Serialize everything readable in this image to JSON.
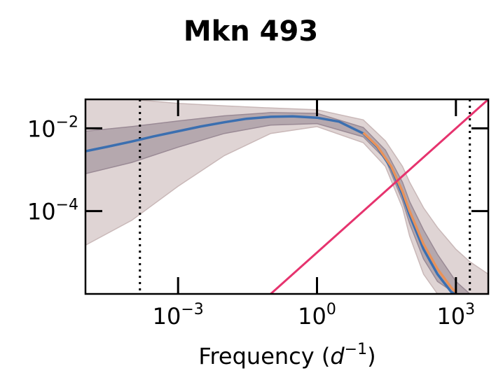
{
  "chart_data": {
    "type": "line",
    "title": "Mkn 493",
    "xlabel": "Frequency (d^-1)",
    "xscale": "log",
    "yscale": "log",
    "xlim": [
      1e-05,
      5000
    ],
    "ylim": [
      1e-06,
      0.05
    ],
    "x_ticks": [
      {
        "base": "10",
        "exp": "−3",
        "value": 0.001
      },
      {
        "base": "10",
        "exp": "0",
        "value": 1
      },
      {
        "base": "10",
        "exp": "3",
        "value": 1000
      }
    ],
    "y_ticks": [
      {
        "base": "10",
        "exp": "−2",
        "value": 0.01
      },
      {
        "base": "10",
        "exp": "−4",
        "value": 0.0001
      }
    ],
    "vlines": [
      {
        "x": 0.00015,
        "style": "dotted",
        "color": "#000000"
      },
      {
        "x": 2000,
        "style": "dotted",
        "color": "#000000"
      }
    ],
    "series": [
      {
        "role": "median",
        "color": "#3b6fb0",
        "x": [
          1e-05,
          3e-05,
          0.0001,
          0.0003,
          0.001,
          0.003,
          0.01,
          0.03,
          0.1,
          0.3,
          1,
          3,
          10,
          20,
          40,
          70,
          100,
          200,
          400,
          800,
          1000
        ],
        "y": [
          0.0028,
          0.0036,
          0.0048,
          0.0064,
          0.0085,
          0.011,
          0.014,
          0.017,
          0.019,
          0.0195,
          0.018,
          0.0145,
          0.0075,
          0.0035,
          0.0011,
          0.00025,
          8e-05,
          1.2e-05,
          3e-06,
          1.1e-06,
          1e-06
        ]
      },
      {
        "role": "median-alt",
        "color": "#e8925a",
        "x": [
          10,
          20,
          40,
          70,
          100,
          200,
          400,
          800,
          1000
        ],
        "y": [
          0.0078,
          0.0037,
          0.0012,
          0.0003,
          0.0001,
          1.6e-05,
          4e-06,
          1.4e-06,
          1.1e-06
        ]
      },
      {
        "role": "reference-power-law",
        "color": "#e6336e",
        "x": [
          0.1,
          5000
        ],
        "y": [
          1e-06,
          0.05
        ]
      }
    ],
    "bands": [
      {
        "role": "outer-interval",
        "color": "#c9b8b8",
        "x": [
          1e-05,
          0.0001,
          0.001,
          0.01,
          0.1,
          1,
          10,
          30,
          70,
          100,
          200,
          400,
          1000,
          2000,
          5000
        ],
        "lower": [
          1.5e-05,
          6e-05,
          0.0004,
          0.0022,
          0.0075,
          0.011,
          0.0045,
          0.0012,
          0.00012,
          2.5e-05,
          3e-06,
          1e-06,
          1e-06,
          1e-06,
          1e-06
        ],
        "upper": [
          0.05,
          0.05,
          0.04,
          0.035,
          0.031,
          0.028,
          0.016,
          0.005,
          0.0012,
          0.0005,
          0.00012,
          4e-05,
          1.2e-05,
          6e-06,
          3e-06
        ]
      },
      {
        "role": "inner-interval",
        "color": "#9a8a95",
        "x": [
          1e-05,
          0.0001,
          0.001,
          0.01,
          0.1,
          1,
          10,
          30,
          70,
          100,
          200,
          400,
          1000,
          2000
        ],
        "lower": [
          0.0008,
          0.0015,
          0.0035,
          0.0075,
          0.012,
          0.013,
          0.0062,
          0.0018,
          0.00018,
          5e-05,
          7e-06,
          2e-06,
          1e-06,
          1e-06
        ],
        "upper": [
          0.0085,
          0.011,
          0.015,
          0.02,
          0.024,
          0.023,
          0.0105,
          0.003,
          0.0005,
          0.00017,
          3.5e-05,
          9e-06,
          2e-06,
          1e-06
        ]
      }
    ]
  }
}
